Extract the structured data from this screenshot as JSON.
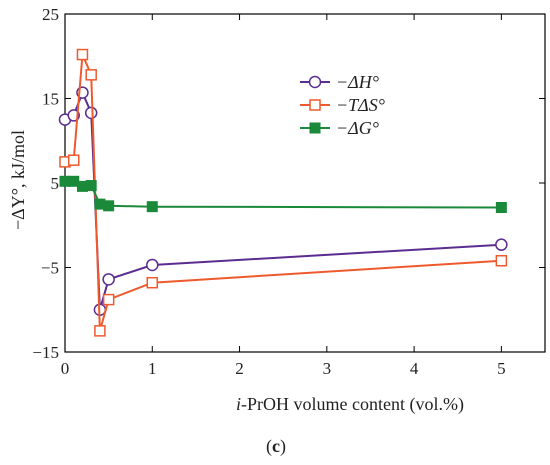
{
  "chart_data": {
    "type": "line",
    "xlabel": "i-PrOH volume content (vol.%)",
    "ylabel": "−ΔY°, kJ/mol",
    "xlim": [
      0,
      5.5
    ],
    "ylim": [
      -15,
      25
    ],
    "x_ticks": [
      0,
      1,
      2,
      3,
      4,
      5
    ],
    "y_ticks": [
      -15,
      -5,
      5,
      15,
      25
    ],
    "x_tick_labels": [
      "0",
      "1",
      "2",
      "3",
      "4",
      "5"
    ],
    "y_tick_labels": [
      "−15",
      "−5",
      "5",
      "15",
      "25"
    ],
    "grid": false,
    "legend_position": "top-right",
    "series": [
      {
        "name": "−ΔH°",
        "color": "#5b2d90",
        "marker": "open-circle",
        "x": [
          0,
          0.1,
          0.2,
          0.3,
          0.4,
          0.5,
          1,
          5
        ],
        "y": [
          12.5,
          13,
          15.7,
          13.3,
          -10,
          -6.4,
          -4.7,
          -2.3
        ]
      },
      {
        "name": "−TΔS°",
        "color": "#ee5a2d",
        "marker": "open-square",
        "x": [
          0,
          0.1,
          0.2,
          0.3,
          0.4,
          0.5,
          1,
          5
        ],
        "y": [
          7.5,
          7.7,
          20.2,
          17.8,
          -12.5,
          -8.8,
          -6.8,
          -4.2
        ]
      },
      {
        "name": "−ΔG°",
        "color": "#1a8a3a",
        "marker": "filled-square",
        "x": [
          0,
          0.1,
          0.2,
          0.3,
          0.4,
          0.5,
          1,
          5
        ],
        "y": [
          5.2,
          5.2,
          4.6,
          4.7,
          2.5,
          2.3,
          2.2,
          2.1
        ]
      }
    ]
  },
  "caption": "(c)"
}
